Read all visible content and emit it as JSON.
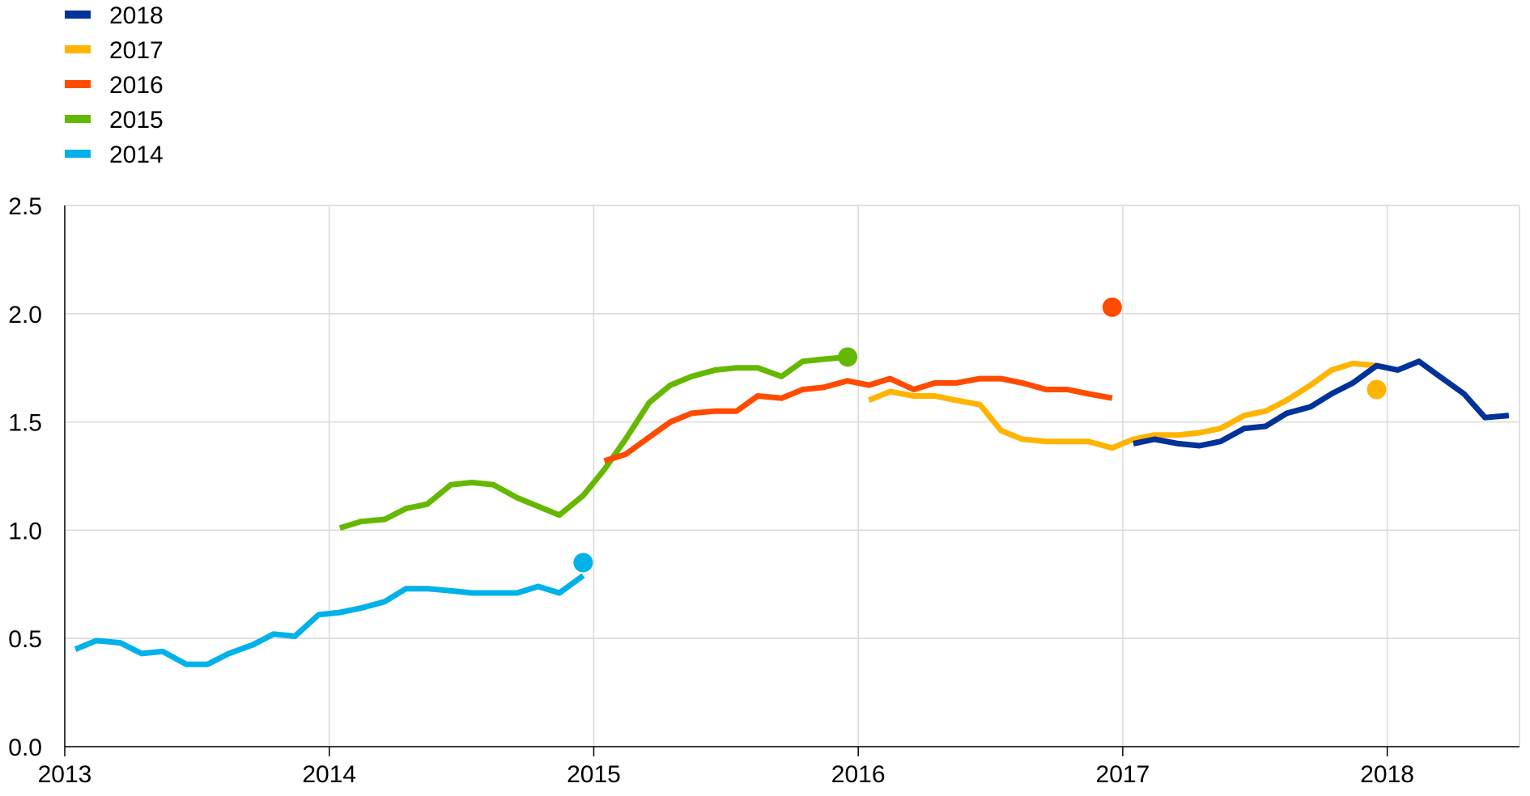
{
  "chart_data": {
    "type": "line",
    "title": "",
    "xlabel": "",
    "ylabel": "",
    "xlim": [
      2013,
      2018.5
    ],
    "ylim": [
      0,
      2.5
    ],
    "x_ticks": [
      "2013",
      "2014",
      "2015",
      "2016",
      "2017",
      "2018"
    ],
    "y_ticks": [
      "0.0",
      "0.5",
      "1.0",
      "1.5",
      "2.0",
      "2.5"
    ],
    "grid": true,
    "legend_position": "top-left",
    "series": [
      {
        "name": "2018",
        "color": "#003299",
        "x": [
          2017.04,
          2017.12,
          2017.21,
          2017.29,
          2017.37,
          2017.46,
          2017.54,
          2017.62,
          2017.71,
          2017.79,
          2017.87,
          2017.96,
          2018.04,
          2018.12,
          2018.21,
          2018.29,
          2018.37,
          2018.46
        ],
        "y": [
          1.4,
          1.42,
          1.4,
          1.39,
          1.41,
          1.47,
          1.48,
          1.54,
          1.57,
          1.63,
          1.68,
          1.76,
          1.74,
          1.78,
          1.7,
          1.63,
          1.52,
          1.53
        ],
        "marker": null
      },
      {
        "name": "2017",
        "color": "#FFB400",
        "x": [
          2016.04,
          2016.12,
          2016.21,
          2016.29,
          2016.37,
          2016.46,
          2016.54,
          2016.62,
          2016.71,
          2016.79,
          2016.87,
          2016.96,
          2017.04,
          2017.12,
          2017.21,
          2017.29,
          2017.37,
          2017.46,
          2017.54,
          2017.62,
          2017.71,
          2017.79,
          2017.87,
          2017.96
        ],
        "y": [
          1.6,
          1.64,
          1.62,
          1.62,
          1.6,
          1.58,
          1.46,
          1.42,
          1.41,
          1.41,
          1.41,
          1.38,
          1.42,
          1.44,
          1.44,
          1.45,
          1.47,
          1.53,
          1.55,
          1.6,
          1.67,
          1.74,
          1.77,
          1.76
        ],
        "marker": {
          "x": 2017.96,
          "y": 1.65
        }
      },
      {
        "name": "2016",
        "color": "#FF4B00",
        "x": [
          2015.04,
          2015.12,
          2015.21,
          2015.29,
          2015.37,
          2015.46,
          2015.54,
          2015.62,
          2015.71,
          2015.79,
          2015.87,
          2015.96,
          2016.04,
          2016.12,
          2016.21,
          2016.29,
          2016.37,
          2016.46,
          2016.54,
          2016.62,
          2016.71,
          2016.79,
          2016.87,
          2016.96
        ],
        "y": [
          1.32,
          1.35,
          1.43,
          1.5,
          1.54,
          1.55,
          1.55,
          1.62,
          1.61,
          1.65,
          1.66,
          1.69,
          1.67,
          1.7,
          1.65,
          1.68,
          1.68,
          1.7,
          1.7,
          1.68,
          1.65,
          1.65,
          1.63,
          1.61
        ],
        "marker": {
          "x": 2016.96,
          "y": 2.03
        }
      },
      {
        "name": "2015",
        "color": "#65B800",
        "x": [
          2014.04,
          2014.12,
          2014.21,
          2014.29,
          2014.37,
          2014.46,
          2014.54,
          2014.62,
          2014.71,
          2014.79,
          2014.87,
          2014.96,
          2015.04,
          2015.12,
          2015.21,
          2015.29,
          2015.37,
          2015.46,
          2015.54,
          2015.62,
          2015.71,
          2015.79,
          2015.87,
          2015.96
        ],
        "y": [
          1.01,
          1.04,
          1.05,
          1.1,
          1.12,
          1.21,
          1.22,
          1.21,
          1.15,
          1.11,
          1.07,
          1.16,
          1.28,
          1.42,
          1.59,
          1.67,
          1.71,
          1.74,
          1.75,
          1.75,
          1.71,
          1.78,
          1.79,
          1.8
        ],
        "marker": {
          "x": 2015.96,
          "y": 1.8
        }
      },
      {
        "name": "2014",
        "color": "#00B1EA",
        "x": [
          2013.04,
          2013.12,
          2013.21,
          2013.29,
          2013.37,
          2013.46,
          2013.54,
          2013.62,
          2013.71,
          2013.79,
          2013.87,
          2013.96,
          2014.04,
          2014.12,
          2014.21,
          2014.29,
          2014.37,
          2014.46,
          2014.54,
          2014.62,
          2014.71,
          2014.79,
          2014.87,
          2014.96
        ],
        "y": [
          0.45,
          0.49,
          0.48,
          0.43,
          0.44,
          0.38,
          0.38,
          0.43,
          0.47,
          0.52,
          0.51,
          0.61,
          0.62,
          0.64,
          0.67,
          0.73,
          0.73,
          0.72,
          0.71,
          0.71,
          0.71,
          0.74,
          0.71,
          0.79
        ],
        "marker": {
          "x": 2014.96,
          "y": 0.85
        }
      }
    ]
  }
}
